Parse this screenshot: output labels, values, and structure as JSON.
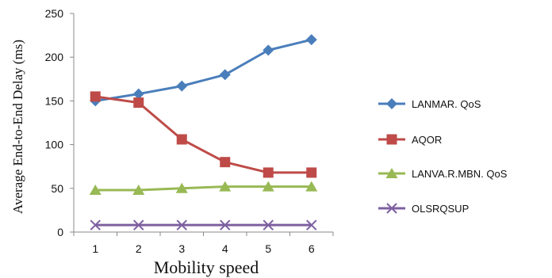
{
  "chart_data": {
    "type": "line",
    "title": "",
    "xlabel": "Mobility speed",
    "ylabel": "Average End-to-End Delay (ms)",
    "x": [
      1,
      2,
      3,
      4,
      5,
      6
    ],
    "ylim": [
      0,
      250
    ],
    "y_ticks": [
      0,
      50,
      100,
      150,
      200,
      250
    ],
    "grid": false,
    "legend_position": "right",
    "series": [
      {
        "name": "LANMAR. QoS",
        "values": [
          150,
          158,
          167,
          180,
          208,
          220
        ],
        "color": "#4a7ebb",
        "marker": "diamond"
      },
      {
        "name": "AQOR",
        "values": [
          155,
          148,
          106,
          80,
          68,
          68
        ],
        "color": "#be4b48",
        "marker": "square"
      },
      {
        "name": "LANVA.R.MBN. QoS",
        "values": [
          48,
          48,
          50,
          52,
          52,
          52
        ],
        "color": "#98b954",
        "marker": "triangle"
      },
      {
        "name": "OLSRQSUP",
        "values": [
          8,
          8,
          8,
          8,
          8,
          8
        ],
        "color": "#7d60a0",
        "marker": "x"
      }
    ]
  }
}
